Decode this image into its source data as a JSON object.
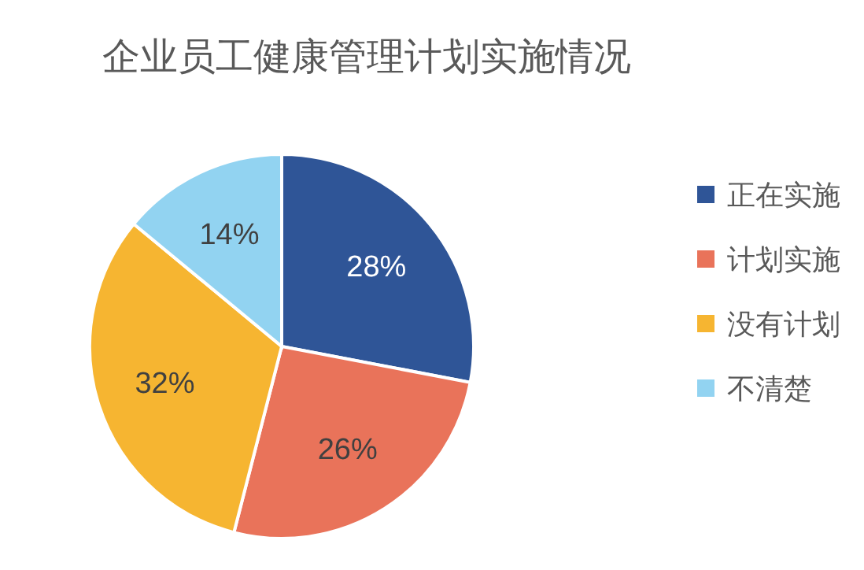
{
  "chart_data": {
    "type": "pie",
    "title": "企业员工健康管理计划实施情况",
    "categories": [
      "正在实施",
      "计划实施",
      "没有计划",
      "不清楚"
    ],
    "values": [
      28,
      26,
      32,
      14
    ],
    "colors": [
      "#2f5597",
      "#e9735a",
      "#f6b531",
      "#92d3f1"
    ],
    "value_labels": [
      "28%",
      "26%",
      "32%",
      "14%"
    ],
    "legend": "right"
  }
}
